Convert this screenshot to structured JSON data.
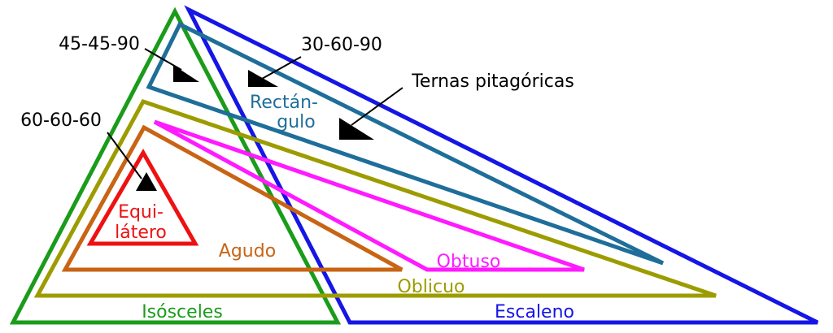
{
  "colors": {
    "isosceles": "#1a9c1a",
    "scalene": "#1515e6",
    "right": "#1f6e9a",
    "oblique": "#9c9c00",
    "acute": "#c86414",
    "obtuse": "#ff1aff",
    "equilateral": "#ee1111",
    "annotation": "#000000"
  },
  "labels": {
    "isosceles": "Isósceles",
    "scalene": "Escaleno",
    "right_line1": "Rectán-",
    "right_line2": "gulo",
    "oblique": "Oblicuo",
    "acute": "Agudo",
    "obtuse": "Obtuso",
    "equilateral_line1": "Equi-",
    "equilateral_line2": "látero"
  },
  "annotations": {
    "t45": "45-45-90",
    "t30": "30-60-90",
    "pythagorean": "Ternas pitagóricas",
    "t60": "60-60-60"
  }
}
